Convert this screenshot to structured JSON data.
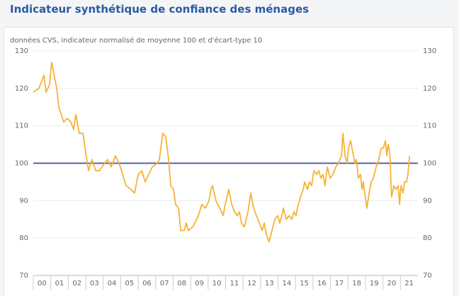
{
  "chart_data": {
    "type": "line",
    "title": "Indicateur synthétique de confiance des ménages",
    "subtitle": "données CVS, indicateur normalisé de moyenne 100 et d'écart-type 10",
    "reference_line": 100,
    "reference_color": "#5b5ea8",
    "xlim": [
      2000,
      2022
    ],
    "ylim": [
      70,
      130
    ],
    "yticks": [
      70,
      80,
      90,
      100,
      110,
      120,
      130
    ],
    "y2lim": [
      70,
      130
    ],
    "y2ticks": [
      70,
      80,
      90,
      100,
      110,
      120,
      130
    ],
    "grid": true,
    "xticks": [
      {
        "value": 2000,
        "label": "00"
      },
      {
        "value": 2001,
        "label": "01"
      },
      {
        "value": 2002,
        "label": "02"
      },
      {
        "value": 2003,
        "label": "03"
      },
      {
        "value": 2004,
        "label": "04"
      },
      {
        "value": 2005,
        "label": "05"
      },
      {
        "value": 2006,
        "label": "06"
      },
      {
        "value": 2007,
        "label": "07"
      },
      {
        "value": 2008,
        "label": "08"
      },
      {
        "value": 2009,
        "label": "09"
      },
      {
        "value": 2010,
        "label": "10"
      },
      {
        "value": 2011,
        "label": "11"
      },
      {
        "value": 2012,
        "label": "12"
      },
      {
        "value": 2013,
        "label": "13"
      },
      {
        "value": 2014,
        "label": "14"
      },
      {
        "value": 2015,
        "label": "15"
      },
      {
        "value": 2016,
        "label": "16"
      },
      {
        "value": 2017,
        "label": "17"
      },
      {
        "value": 2018,
        "label": "18"
      },
      {
        "value": 2019,
        "label": "19"
      },
      {
        "value": 2020,
        "label": "20"
      },
      {
        "value": 2021,
        "label": "21"
      }
    ],
    "x": [
      2000.0,
      2000.32,
      2000.61,
      2000.73,
      2000.93,
      2001.05,
      2001.34,
      2001.46,
      2001.74,
      2001.94,
      2002.15,
      2002.31,
      2002.43,
      2002.63,
      2002.84,
      2002.96,
      2003.16,
      2003.36,
      2003.57,
      2003.77,
      2004.09,
      2004.25,
      2004.46,
      2004.7,
      2004.98,
      2005.11,
      2005.31,
      2005.59,
      2005.79,
      2006.0,
      2006.2,
      2006.4,
      2006.6,
      2006.81,
      2007.09,
      2007.21,
      2007.41,
      2007.58,
      2007.74,
      2007.86,
      2008.02,
      2008.14,
      2008.31,
      2008.43,
      2008.63,
      2008.75,
      2008.87,
      2009.12,
      2009.24,
      2009.44,
      2009.64,
      2009.85,
      2010.05,
      2010.17,
      2010.25,
      2010.45,
      2010.66,
      2010.86,
      2010.98,
      2011.18,
      2011.35,
      2011.51,
      2011.67,
      2011.79,
      2011.91,
      2012.07,
      2012.28,
      2012.44,
      2012.6,
      2012.76,
      2012.93,
      2013.09,
      2013.21,
      2013.33,
      2013.41,
      2013.49,
      2013.65,
      2013.82,
      2013.98,
      2014.1,
      2014.22,
      2014.3,
      2014.47,
      2014.63,
      2014.79,
      2014.91,
      2015.03,
      2015.11,
      2015.28,
      2015.44,
      2015.52,
      2015.68,
      2015.8,
      2015.92,
      2016.05,
      2016.21,
      2016.33,
      2016.45,
      2016.57,
      2016.69,
      2016.82,
      2016.98,
      2017.14,
      2017.3,
      2017.46,
      2017.54,
      2017.63,
      2017.71,
      2017.83,
      2017.95,
      2018.03,
      2018.15,
      2018.27,
      2018.4,
      2018.48,
      2018.6,
      2018.72,
      2018.8,
      2018.88,
      2018.96,
      2019.08,
      2019.21,
      2019.33,
      2019.45,
      2019.61,
      2019.77,
      2019.89,
      2020.02,
      2020.14,
      2020.22,
      2020.3,
      2020.38,
      2020.42,
      2020.46,
      2020.5,
      2020.62,
      2020.75,
      2020.87,
      2020.95,
      2021.03,
      2021.15,
      2021.23,
      2021.35,
      2021.43,
      2021.52
    ],
    "series": [
      {
        "name": "Indicateur",
        "color": "#f5b335",
        "values": [
          119,
          120,
          123.5,
          119,
          121,
          127,
          120,
          115,
          111,
          112,
          111,
          109,
          113,
          108,
          108,
          104,
          98,
          101,
          98,
          98,
          100,
          101,
          99,
          102,
          99,
          97,
          94,
          93,
          92,
          97,
          98,
          95,
          97,
          99,
          100,
          101,
          108,
          107,
          101,
          94,
          93,
          89,
          88,
          82,
          82,
          84,
          82,
          83,
          84,
          86,
          89,
          88,
          90,
          93,
          94,
          90,
          88,
          86,
          89,
          93,
          89,
          87,
          86,
          87,
          84,
          83,
          87,
          92,
          88,
          86,
          84,
          82,
          84,
          81,
          80,
          79,
          82,
          85,
          86,
          84,
          86,
          88,
          85,
          86,
          85,
          87,
          86,
          88,
          91,
          93,
          95,
          93,
          95,
          94,
          98,
          97,
          98,
          96,
          97,
          94,
          99,
          96,
          97,
          99,
          100,
          101,
          102,
          108,
          102,
          100,
          104,
          106,
          103,
          100,
          101,
          96,
          97,
          93,
          95,
          92,
          88,
          92,
          95,
          96,
          99,
          101,
          104,
          104,
          106,
          102,
          105,
          103,
          100,
          94,
          91,
          94,
          93,
          94,
          89,
          94,
          92,
          95,
          95,
          97,
          102
        ]
      }
    ]
  }
}
